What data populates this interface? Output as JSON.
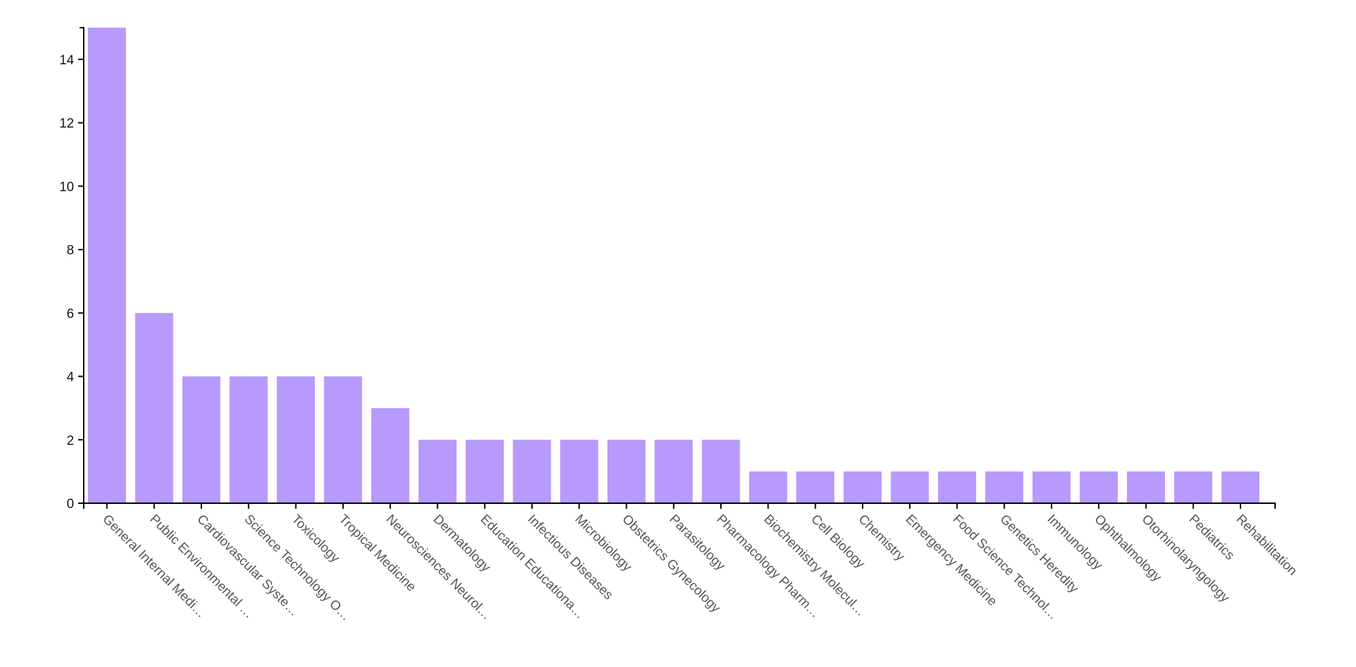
{
  "chart_data": {
    "type": "bar",
    "title": "",
    "xlabel": "",
    "ylabel": "",
    "ylim": [
      0,
      15
    ],
    "yticks": [
      0,
      2,
      4,
      6,
      8,
      10,
      12,
      14
    ],
    "grid": false,
    "bar_color": "#b899fc",
    "categories": [
      "General Internal Medi…",
      "Public Environmental …",
      "Cardiovascular Syste…",
      "Science Technology O…",
      "Toxicology",
      "Tropical Medicine",
      "Neurosciences Neurol…",
      "Dermatology",
      "Education Educationa…",
      "Infectious Diseases",
      "Microbiology",
      "Obstetrics Gynecology",
      "Parasitology",
      "Pharmacology Pharm…",
      "Biochemistry Molecul…",
      "Cell Biology",
      "Chemistry",
      "Emergency Medicine",
      "Food Science Technol…",
      "Genetics Heredity",
      "Immunology",
      "Ophthalmology",
      "Otorhinolaryngology",
      "Pediatrics",
      "Rehabilitation"
    ],
    "values": [
      15,
      6,
      4,
      4,
      4,
      4,
      3,
      2,
      2,
      2,
      2,
      2,
      2,
      2,
      1,
      1,
      1,
      1,
      1,
      1,
      1,
      1,
      1,
      1,
      1
    ]
  }
}
